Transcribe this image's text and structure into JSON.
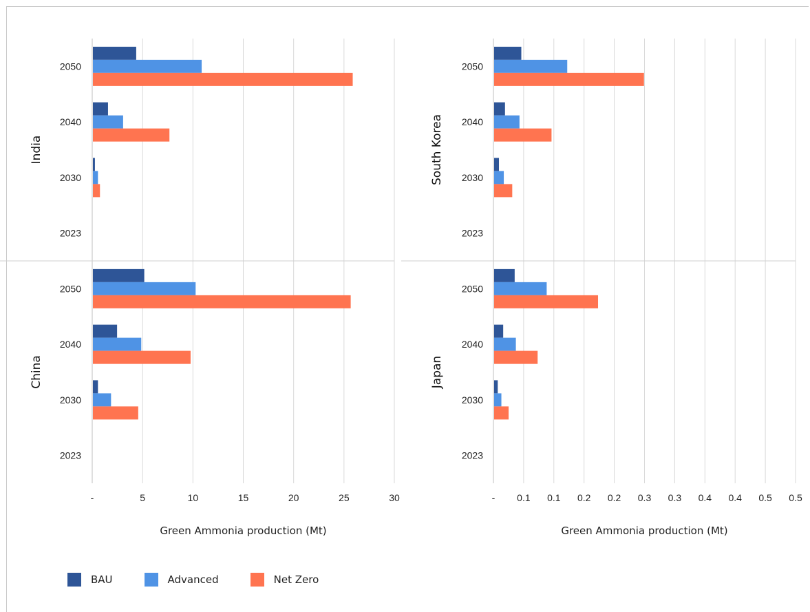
{
  "chart_data": {
    "type": "bar",
    "orientation": "horizontal",
    "legend": {
      "placement": "bottom-left",
      "entries": [
        {
          "name": "BAU",
          "color": "#2e5597"
        },
        {
          "name": "Advanced",
          "color": "#4f93e5"
        },
        {
          "name": "Net Zero",
          "color": "#ff7450"
        }
      ]
    },
    "grid": true,
    "panels": [
      {
        "xlabel": "Green Ammonia production (Mt)",
        "xlim": [
          0,
          30
        ],
        "xticks": [
          "-",
          "5",
          "10",
          "15",
          "20",
          "25",
          "30"
        ],
        "groups": [
          {
            "label": "India",
            "categories": [
              "2050",
              "2040",
              "2030",
              "2023"
            ],
            "series": [
              {
                "name": "BAU",
                "values": [
                  4.3,
                  1.5,
                  0.2,
                  0
                ]
              },
              {
                "name": "Advanced",
                "values": [
                  10.8,
                  3.0,
                  0.5,
                  0
                ]
              },
              {
                "name": "Net Zero",
                "values": [
                  25.8,
                  7.6,
                  0.7,
                  0
                ]
              }
            ]
          },
          {
            "label": "China",
            "categories": [
              "2050",
              "2040",
              "2030",
              "2023"
            ],
            "series": [
              {
                "name": "BAU",
                "values": [
                  5.1,
                  2.4,
                  0.5,
                  0
                ]
              },
              {
                "name": "Advanced",
                "values": [
                  10.2,
                  4.8,
                  1.8,
                  0
                ]
              },
              {
                "name": "Net Zero",
                "values": [
                  25.6,
                  9.7,
                  4.5,
                  0
                ]
              }
            ]
          }
        ]
      },
      {
        "xlabel": "Green Ammonia production (Mt)",
        "xlim": [
          0,
          0.5
        ],
        "xticks": [
          "-",
          "0.1",
          "0.1",
          "0.2",
          "0.2",
          "0.3",
          "0.3",
          "0.4",
          "0.4",
          "0.5",
          "0.5"
        ],
        "groups": [
          {
            "label": "South Korea",
            "categories": [
              "2050",
              "2040",
              "2030",
              "2023"
            ],
            "series": [
              {
                "name": "BAU",
                "values": [
                  0.045,
                  0.018,
                  0.008,
                  0
                ]
              },
              {
                "name": "Advanced",
                "values": [
                  0.121,
                  0.042,
                  0.016,
                  0
                ]
              },
              {
                "name": "Net Zero",
                "values": [
                  0.248,
                  0.095,
                  0.03,
                  0
                ]
              }
            ]
          },
          {
            "label": "Japan",
            "categories": [
              "2050",
              "2040",
              "2030",
              "2023"
            ],
            "series": [
              {
                "name": "BAU",
                "values": [
                  0.034,
                  0.015,
                  0.006,
                  0
                ]
              },
              {
                "name": "Advanced",
                "values": [
                  0.087,
                  0.036,
                  0.012,
                  0
                ]
              },
              {
                "name": "Net Zero",
                "values": [
                  0.172,
                  0.072,
                  0.024,
                  0
                ]
              }
            ]
          }
        ]
      }
    ]
  }
}
